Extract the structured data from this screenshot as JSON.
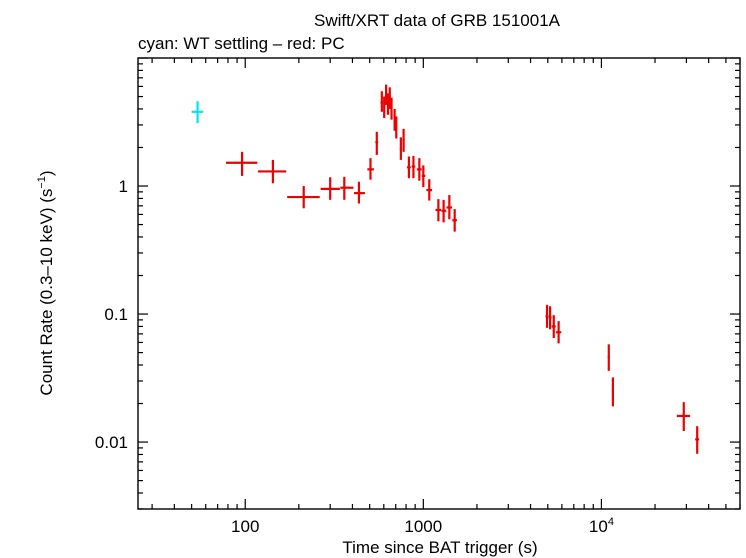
{
  "chart_data": {
    "type": "scatter",
    "title": "Swift/XRT data of GRB 151001A",
    "subtitle": "cyan: WT settling – red: PC",
    "xlabel": "Time since BAT trigger (s)",
    "ylabel": "Count Rate (0.3–10 keV) (s",
    "ylabel_sup": "−1",
    "ylabel_end": ")",
    "x_scale": "log",
    "y_scale": "log",
    "xlim": [
      25,
      60000
    ],
    "ylim": [
      0.003,
      10
    ],
    "x_ticks": [
      {
        "value": 100,
        "label": "100"
      },
      {
        "value": 1000,
        "label": "1000"
      },
      {
        "value": 10000,
        "label": "10",
        "sup": "4"
      }
    ],
    "y_ticks": [
      {
        "value": 1,
        "label": "1"
      },
      {
        "value": 0.1,
        "label": "0.1"
      },
      {
        "value": 0.01,
        "label": "0.01"
      }
    ],
    "grid": false,
    "series": [
      {
        "color": "#00e5ee",
        "points": [
          {
            "x": 54,
            "xlo": 50,
            "xhi": 58,
            "y": 3.8,
            "ylo": 3.1,
            "yhi": 4.6
          }
        ]
      },
      {
        "color": "#ee0000",
        "points": [
          {
            "x": 96,
            "xlo": 78,
            "xhi": 117,
            "y": 1.52,
            "ylo": 1.2,
            "yhi": 1.85
          },
          {
            "x": 143,
            "xlo": 118,
            "xhi": 170,
            "y": 1.3,
            "ylo": 1.05,
            "yhi": 1.6
          },
          {
            "x": 213,
            "xlo": 172,
            "xhi": 262,
            "y": 0.82,
            "ylo": 0.67,
            "yhi": 1.0
          },
          {
            "x": 300,
            "xlo": 265,
            "xhi": 340,
            "y": 0.95,
            "ylo": 0.78,
            "yhi": 1.17
          },
          {
            "x": 360,
            "xlo": 342,
            "xhi": 405,
            "y": 0.97,
            "ylo": 0.78,
            "yhi": 1.18
          },
          {
            "x": 435,
            "xlo": 408,
            "xhi": 470,
            "y": 0.88,
            "ylo": 0.73,
            "yhi": 1.08
          },
          {
            "x": 505,
            "xlo": 485,
            "xhi": 528,
            "y": 1.35,
            "ylo": 1.12,
            "yhi": 1.65
          },
          {
            "x": 548,
            "xlo": 538,
            "xhi": 558,
            "y": 2.2,
            "ylo": 1.75,
            "yhi": 2.65
          },
          {
            "x": 585,
            "xlo": 575,
            "xhi": 595,
            "y": 4.5,
            "ylo": 3.8,
            "yhi": 5.5
          },
          {
            "x": 603,
            "xlo": 597,
            "xhi": 609,
            "y": 4.1,
            "ylo": 3.4,
            "yhi": 5.0
          },
          {
            "x": 618,
            "xlo": 611,
            "xhi": 625,
            "y": 5.2,
            "ylo": 4.3,
            "yhi": 6.2
          },
          {
            "x": 633,
            "xlo": 627,
            "xhi": 639,
            "y": 4.4,
            "ylo": 3.6,
            "yhi": 5.3
          },
          {
            "x": 648,
            "xlo": 641,
            "xhi": 655,
            "y": 4.9,
            "ylo": 4.0,
            "yhi": 5.9
          },
          {
            "x": 663,
            "xlo": 657,
            "xhi": 669,
            "y": 4.0,
            "ylo": 3.3,
            "yhi": 4.9
          },
          {
            "x": 690,
            "xlo": 682,
            "xhi": 698,
            "y": 3.3,
            "ylo": 2.7,
            "yhi": 4.0
          },
          {
            "x": 705,
            "xlo": 699,
            "xhi": 711,
            "y": 2.9,
            "ylo": 2.35,
            "yhi": 3.5
          },
          {
            "x": 748,
            "xlo": 738,
            "xhi": 758,
            "y": 1.95,
            "ylo": 1.6,
            "yhi": 2.4
          },
          {
            "x": 775,
            "xlo": 765,
            "xhi": 785,
            "y": 2.3,
            "ylo": 1.85,
            "yhi": 2.8
          },
          {
            "x": 830,
            "xlo": 810,
            "xhi": 850,
            "y": 1.4,
            "ylo": 1.15,
            "yhi": 1.7
          },
          {
            "x": 880,
            "xlo": 860,
            "xhi": 900,
            "y": 1.42,
            "ylo": 1.15,
            "yhi": 1.72
          },
          {
            "x": 950,
            "xlo": 920,
            "xhi": 980,
            "y": 1.35,
            "ylo": 1.1,
            "yhi": 1.65
          },
          {
            "x": 1000,
            "xlo": 980,
            "xhi": 1025,
            "y": 1.2,
            "ylo": 0.98,
            "yhi": 1.45
          },
          {
            "x": 1080,
            "xlo": 1040,
            "xhi": 1120,
            "y": 0.93,
            "ylo": 0.77,
            "yhi": 1.13
          },
          {
            "x": 1215,
            "xlo": 1170,
            "xhi": 1260,
            "y": 0.65,
            "ylo": 0.53,
            "yhi": 0.79
          },
          {
            "x": 1300,
            "xlo": 1265,
            "xhi": 1345,
            "y": 0.64,
            "ylo": 0.52,
            "yhi": 0.78
          },
          {
            "x": 1400,
            "xlo": 1350,
            "xhi": 1450,
            "y": 0.68,
            "ylo": 0.55,
            "yhi": 0.85
          },
          {
            "x": 1500,
            "xlo": 1455,
            "xhi": 1545,
            "y": 0.54,
            "ylo": 0.44,
            "yhi": 0.66
          },
          {
            "x": 4950,
            "xlo": 4850,
            "xhi": 5050,
            "y": 0.096,
            "ylo": 0.078,
            "yhi": 0.118
          },
          {
            "x": 5150,
            "xlo": 5060,
            "xhi": 5250,
            "y": 0.094,
            "ylo": 0.076,
            "yhi": 0.115
          },
          {
            "x": 5400,
            "xlo": 5260,
            "xhi": 5540,
            "y": 0.08,
            "ylo": 0.065,
            "yhi": 0.098
          },
          {
            "x": 5750,
            "xlo": 5550,
            "xhi": 5950,
            "y": 0.072,
            "ylo": 0.059,
            "yhi": 0.088
          },
          {
            "x": 11000,
            "xlo": 10850,
            "xhi": 11150,
            "y": 0.046,
            "ylo": 0.036,
            "yhi": 0.058
          },
          {
            "x": 11600,
            "xlo": 11450,
            "xhi": 11750,
            "y": 0.025,
            "ylo": 0.019,
            "yhi": 0.032
          },
          {
            "x": 29000,
            "xlo": 26500,
            "xhi": 31500,
            "y": 0.016,
            "ylo": 0.0122,
            "yhi": 0.0205
          },
          {
            "x": 34500,
            "xlo": 33600,
            "xhi": 35400,
            "y": 0.0105,
            "ylo": 0.0081,
            "yhi": 0.0133
          }
        ]
      }
    ]
  }
}
